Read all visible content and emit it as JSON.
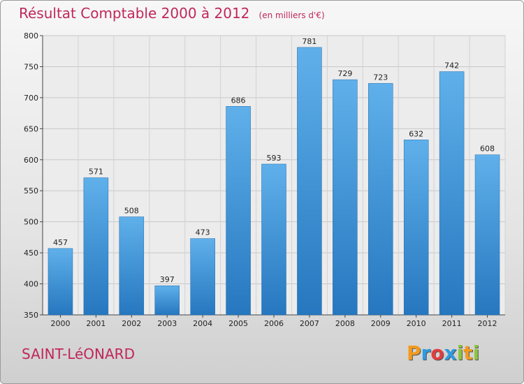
{
  "chart_data": {
    "type": "bar",
    "title": "Résultat Comptable 2000 à 2012",
    "unit": "(en milliers d'€)",
    "xlabel": "",
    "ylabel": "",
    "categories": [
      "2000",
      "2001",
      "2002",
      "2003",
      "2004",
      "2005",
      "2006",
      "2007",
      "2008",
      "2009",
      "2010",
      "2011",
      "2012"
    ],
    "values": [
      457,
      571,
      508,
      397,
      473,
      686,
      593,
      781,
      729,
      723,
      632,
      742,
      608
    ],
    "ylim": [
      350,
      800
    ],
    "yticks": [
      350,
      400,
      450,
      500,
      550,
      600,
      650,
      700,
      750,
      800
    ],
    "grid": true,
    "bar_color": "#3a8fd4"
  },
  "footer": {
    "place": "SAINT-LéONARD",
    "brand_letters": [
      "P",
      "r",
      "o",
      "x",
      "i",
      "t",
      "i"
    ],
    "brand_colors": [
      "#f39a1c",
      "#2d9be0",
      "#e23d3d",
      "#2d9be0",
      "#8cc63f",
      "#f39a1c",
      "#8cc63f"
    ]
  }
}
